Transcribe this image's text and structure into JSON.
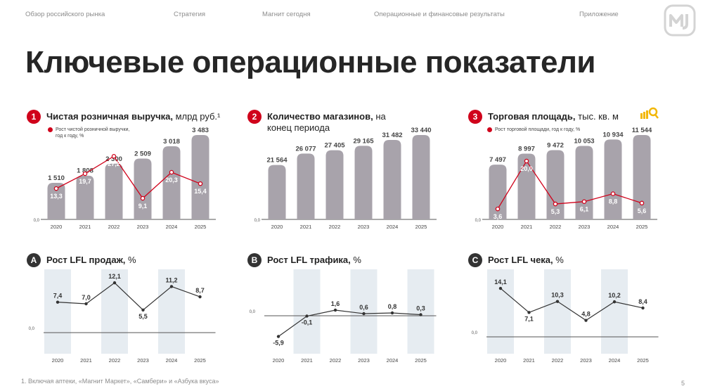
{
  "nav": {
    "items": [
      "Обзор российского рынка",
      "Стратегия",
      "Магнит сегодня",
      "Операционные и финансовые результаты",
      "Приложение"
    ]
  },
  "page_title": "Ключевые операционные показатели",
  "footnote": "1. Включая аптеки, «Магнит Маркет», «Самбери» и «Азбука вкуса»",
  "page_number": "5",
  "colors": {
    "bar": "#a8a3ab",
    "red": "#d0021b",
    "band": "#e6ecf1",
    "line": "#333333",
    "axis": "#555555"
  },
  "panels": {
    "revenue": {
      "badge": "1",
      "title_bold": "Чистая розничная выручка,",
      "title_rest": " млрд руб.¹",
      "legend": [
        "Рост чистой розничной выручки,",
        "год к году, %"
      ]
    },
    "stores": {
      "badge": "2",
      "title_bold": "Количество магазинов,",
      "title_rest": " на",
      "title_line2": "конец периода"
    },
    "area": {
      "badge": "3",
      "title_bold": "Торговая площадь,",
      "title_rest": " тыс. кв. м",
      "legend": [
        "Рост торговой площади, год к году, %"
      ],
      "icon": "scale-icon"
    },
    "lfl_sales": {
      "badge": "A",
      "title_bold": "Рост LFL продаж,",
      "title_rest": " %"
    },
    "lfl_traffic": {
      "badge": "B",
      "title_bold": "Рост LFL трафика,",
      "title_rest": " %"
    },
    "lfl_ticket": {
      "badge": "C",
      "title_bold": "Рост LFL чека,",
      "title_rest": " %"
    }
  },
  "chart_data": [
    {
      "id": "revenue",
      "type": "bar",
      "categories": [
        "2020",
        "2021",
        "2022",
        "2023",
        "2024",
        "2025"
      ],
      "values": [
        1510,
        1808,
        2300,
        2509,
        3018,
        3483
      ],
      "value_labels": [
        "1 510",
        "1 808",
        "2 300",
        "2 509",
        "3 018",
        "3 483"
      ],
      "ylim": [
        0,
        3483
      ],
      "zero_label": "0,0",
      "line": {
        "values": [
          13.3,
          19.7,
          27.2,
          9.1,
          20.3,
          15.4
        ],
        "labels": [
          "13,3",
          "19,7",
          "27,2",
          "9,1",
          "20,3",
          "15,4"
        ],
        "ylim": [
          0,
          40
        ]
      }
    },
    {
      "id": "stores",
      "type": "bar",
      "categories": [
        "2020",
        "2021",
        "2022",
        "2023",
        "2024",
        "2025"
      ],
      "values": [
        21564,
        26077,
        27405,
        29165,
        31482,
        33440
      ],
      "value_labels": [
        "21 564",
        "26 077",
        "27 405",
        "29 165",
        "31 482",
        "33 440"
      ],
      "ylim": [
        0,
        33440
      ],
      "zero_label": "0,0"
    },
    {
      "id": "area",
      "type": "bar",
      "categories": [
        "2020",
        "2021",
        "2022",
        "2023",
        "2024",
        "2025"
      ],
      "values": [
        7497,
        8997,
        9472,
        10053,
        10934,
        11544
      ],
      "value_labels": [
        "7 497",
        "8 997",
        "9 472",
        "10 053",
        "10 934",
        "11 544"
      ],
      "ylim": [
        0,
        11544
      ],
      "zero_label": "0,0",
      "line": {
        "values": [
          3.6,
          20.0,
          5.3,
          6.1,
          8.8,
          5.6
        ],
        "labels": [
          "3,6",
          "20,0",
          "5,3",
          "6,1",
          "8,8",
          "5,6"
        ],
        "ylim": [
          0,
          27
        ]
      }
    },
    {
      "id": "lfl_sales",
      "type": "line",
      "categories": [
        "2020",
        "2021",
        "2022",
        "2023",
        "2024",
        "2025"
      ],
      "values": [
        7.4,
        7.0,
        12.1,
        5.5,
        11.2,
        8.7
      ],
      "value_labels": [
        "7,4",
        "7,0",
        "12,1",
        "5,5",
        "11,2",
        "8,7"
      ],
      "ylim": [
        0,
        14
      ],
      "zero_label": "0,0"
    },
    {
      "id": "lfl_traffic",
      "type": "line",
      "categories": [
        "2020",
        "2021",
        "2022",
        "2023",
        "2024",
        "2025"
      ],
      "values": [
        -5.9,
        -0.1,
        1.6,
        0.6,
        0.8,
        0.3
      ],
      "value_labels": [
        "-5,9",
        "-0,1",
        "1,6",
        "0,6",
        "0,8",
        "0,3"
      ],
      "ylim": [
        -8,
        8
      ],
      "zero_label": "0,0"
    },
    {
      "id": "lfl_ticket",
      "type": "line",
      "categories": [
        "2020",
        "2021",
        "2022",
        "2023",
        "2024",
        "2025"
      ],
      "values": [
        14.1,
        7.1,
        10.3,
        4.8,
        10.2,
        8.4
      ],
      "value_labels": [
        "14,1",
        "7,1",
        "10,3",
        "4,8",
        "10,2",
        "8,4"
      ],
      "ylim": [
        0,
        18
      ],
      "zero_label": "0,0"
    }
  ]
}
